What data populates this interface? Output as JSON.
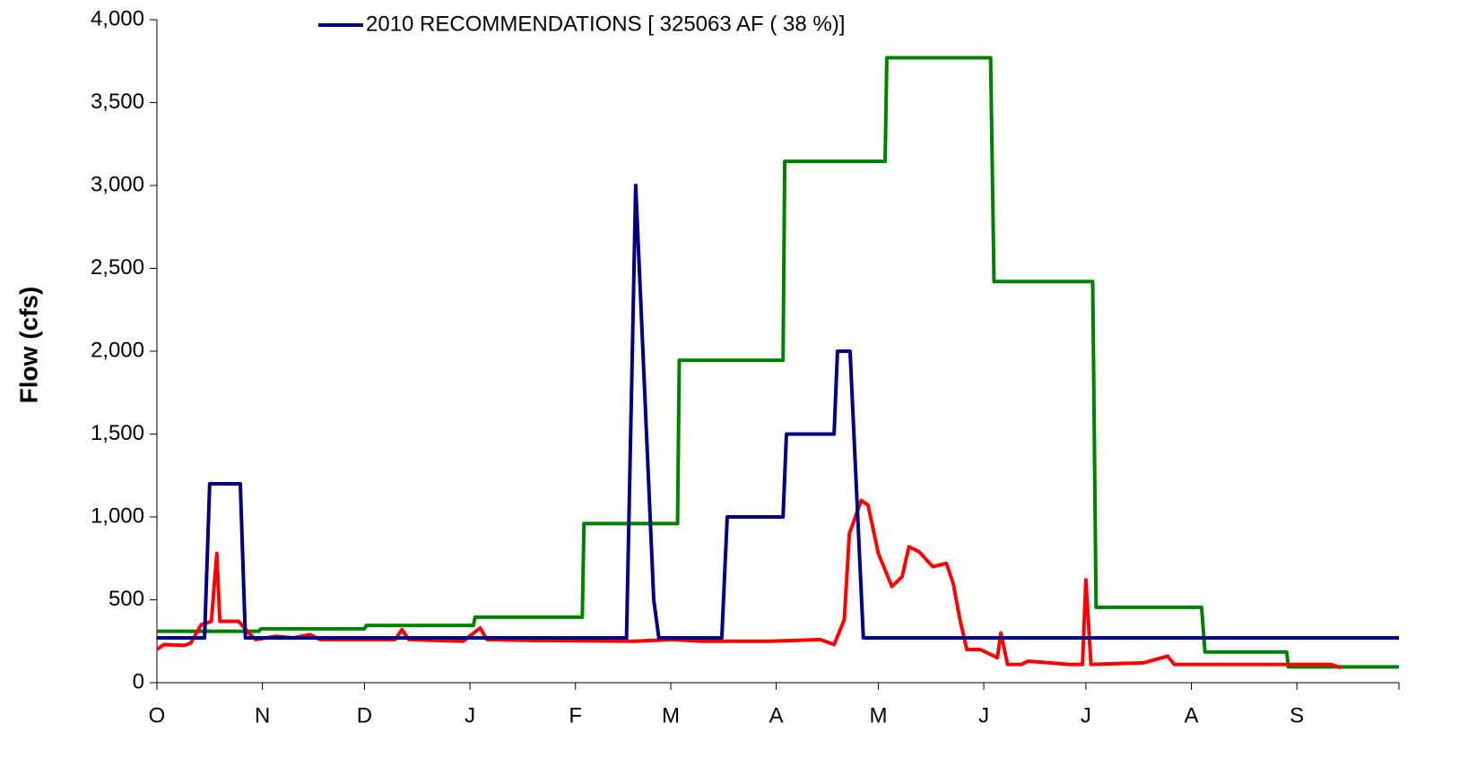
{
  "chart_data": {
    "type": "line",
    "y_label": "Flow (cfs)",
    "xlim": [
      0,
      365
    ],
    "xticks": [
      {
        "value": 0,
        "label": "O"
      },
      {
        "value": 31,
        "label": "N"
      },
      {
        "value": 61,
        "label": "D"
      },
      {
        "value": 92,
        "label": "J"
      },
      {
        "value": 123,
        "label": "F"
      },
      {
        "value": 151,
        "label": "M"
      },
      {
        "value": 182,
        "label": "A"
      },
      {
        "value": 212,
        "label": "M"
      },
      {
        "value": 243,
        "label": "J"
      },
      {
        "value": 273,
        "label": "J"
      },
      {
        "value": 304,
        "label": "A"
      },
      {
        "value": 335,
        "label": "S"
      }
    ],
    "ylim": [
      0,
      4000
    ],
    "yticks": [
      0,
      500,
      {
        "value": 1000,
        "label": "1,000"
      },
      {
        "value": 1500,
        "label": "1,500"
      },
      {
        "value": 2000,
        "label": "2,000"
      },
      {
        "value": 2500,
        "label": "2,500"
      },
      {
        "value": 3000,
        "label": "3,000"
      },
      {
        "value": 3500,
        "label": "3,500"
      },
      {
        "value": 4000,
        "label": "4,000"
      }
    ],
    "series": [
      {
        "color": "#008000",
        "x": [
          0,
          30,
          30.5,
          61,
          61.5,
          93,
          93.5,
          125,
          125.5,
          153,
          153.5,
          184,
          184.5,
          214,
          214.5,
          245,
          246,
          275,
          276,
          307,
          308,
          332,
          332.5,
          365
        ],
        "values": [
          310,
          310,
          325,
          325,
          345,
          345,
          395,
          395,
          960,
          960,
          1945,
          1945,
          3145,
          3145,
          3770,
          3770,
          2420,
          2420,
          455,
          455,
          185,
          185,
          95,
          95
        ]
      },
      {
        "color": "#ff0000",
        "x": [
          0,
          2,
          8,
          10,
          13,
          16,
          17.6,
          18.5,
          24,
          27,
          29,
          35,
          40,
          45,
          48,
          70,
          72,
          74,
          90,
          95,
          97,
          110,
          140,
          152,
          160,
          180,
          195,
          199,
          202,
          203.5,
          207,
          209,
          212,
          216,
          219,
          221,
          224,
          228,
          232,
          234,
          236,
          238,
          242,
          247,
          248,
          250,
          254,
          256,
          262,
          268,
          272,
          273,
          274.5,
          290,
          297,
          299,
          320,
          345,
          348
        ],
        "values": [
          200,
          230,
          225,
          240,
          350,
          370,
          780,
          370,
          370,
          300,
          260,
          280,
          270,
          290,
          260,
          260,
          320,
          260,
          250,
          330,
          260,
          255,
          250,
          260,
          250,
          250,
          260,
          230,
          380,
          900,
          1100,
          1070,
          780,
          580,
          640,
          820,
          790,
          700,
          720,
          600,
          380,
          200,
          200,
          150,
          300,
          110,
          110,
          130,
          120,
          110,
          110,
          620,
          110,
          120,
          160,
          110,
          110,
          110,
          90
        ]
      },
      {
        "name": "2010 RECOMMENDATIONS [ 325063 AF ( 38 %)]",
        "color": "#000080",
        "x": [
          0,
          14,
          15.5,
          24.5,
          26,
          138,
          140.7,
          146,
          147.5,
          166,
          167.6,
          184,
          185,
          199,
          200,
          203.7,
          207.6,
          365
        ],
        "values": [
          270,
          270,
          1200,
          1200,
          270,
          270,
          3000,
          500,
          270,
          270,
          1000,
          1000,
          1500,
          1500,
          2000,
          2000,
          270,
          270
        ]
      }
    ]
  }
}
